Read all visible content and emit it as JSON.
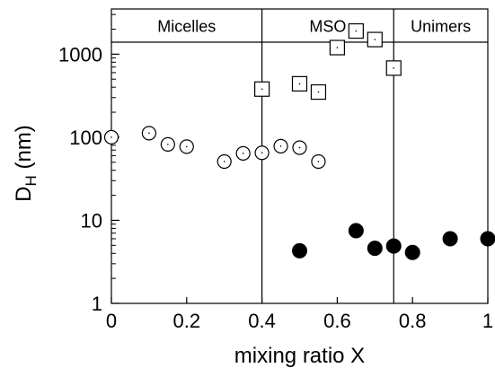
{
  "chart_data": {
    "type": "scatter",
    "title": "",
    "xlabel": "mixing ratio X",
    "ylabel_main": "D",
    "ylabel_sub": "H",
    "ylabel_unit": " (nm)",
    "xlim": [
      0,
      1
    ],
    "ylim": [
      1,
      3500
    ],
    "yscale": "log",
    "grid": false,
    "x_ticks": [
      {
        "value": 0,
        "label": "0"
      },
      {
        "value": 0.2,
        "label": "0.2"
      },
      {
        "value": 0.4,
        "label": "0.4"
      },
      {
        "value": 0.6,
        "label": "0.6"
      },
      {
        "value": 0.8,
        "label": "0.8"
      },
      {
        "value": 1,
        "label": "1"
      }
    ],
    "y_ticks": [
      {
        "value": 1,
        "label": "1"
      },
      {
        "value": 10,
        "label": "10"
      },
      {
        "value": 100,
        "label": "100"
      },
      {
        "value": 1000,
        "label": "1000"
      }
    ],
    "regions": [
      {
        "label": "Micelles",
        "from": 0,
        "to": 0.4
      },
      {
        "label": "MSO",
        "from": 0.4,
        "to": 0.75
      },
      {
        "label": "Unimers",
        "from": 0.75,
        "to": 1
      }
    ],
    "series": [
      {
        "marker": "open-circle",
        "x": [
          0,
          0.1,
          0.15,
          0.2,
          0.3,
          0.35,
          0.4,
          0.45,
          0.5,
          0.55
        ],
        "y": [
          100,
          112,
          82,
          77,
          51,
          64,
          65,
          78,
          75,
          51
        ]
      },
      {
        "marker": "open-square",
        "x": [
          0.4,
          0.5,
          0.55,
          0.6,
          0.65,
          0.7,
          0.75
        ],
        "y": [
          380,
          440,
          350,
          1200,
          1900,
          1500,
          680
        ]
      },
      {
        "marker": "filled-circle",
        "x": [
          0.5,
          0.65,
          0.7,
          0.75,
          0.8,
          0.9,
          1.0
        ],
        "y": [
          4.3,
          7.5,
          4.6,
          4.9,
          4.1,
          6.0,
          6.0
        ]
      }
    ]
  }
}
